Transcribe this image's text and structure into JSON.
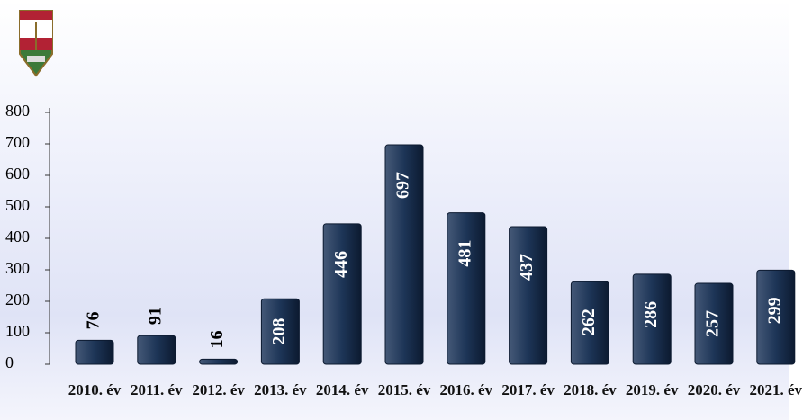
{
  "chart_data": {
    "type": "bar",
    "categories": [
      "2010. év",
      "2011. év",
      "2012. év",
      "2013. év",
      "2014. év",
      "2015. év",
      "2016. év",
      "2017. év",
      "2018. év",
      "2019. év",
      "2020. év",
      "2021. év"
    ],
    "values": [
      76,
      91,
      16,
      208,
      446,
      697,
      481,
      437,
      262,
      286,
      257,
      299
    ],
    "color": "#1d3557",
    "ylim": [
      0,
      800
    ],
    "yticks": [
      0,
      100,
      200,
      300,
      400,
      500,
      600,
      700,
      800
    ]
  }
}
